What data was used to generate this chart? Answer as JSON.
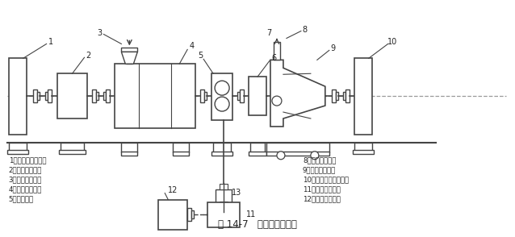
{
  "title": "图 14-7   造粒机组示意图",
  "background_color": "#ffffff",
  "legend_left": [
    "1－混炼机主电机；",
    "2－齿轮减速器；",
    "3－粉末下料器；",
    "4－双螺杆筒体；",
    "5－齿轮泵；"
  ],
  "legend_right": [
    "8－颗粒水出口；",
    "9－水下切粒机；",
    "10－水下切粒电动机；",
    "11－同步齿轮箱；",
    "12－齿轮泵电动机"
  ],
  "label_color": "#222222",
  "line_color": "#444444"
}
